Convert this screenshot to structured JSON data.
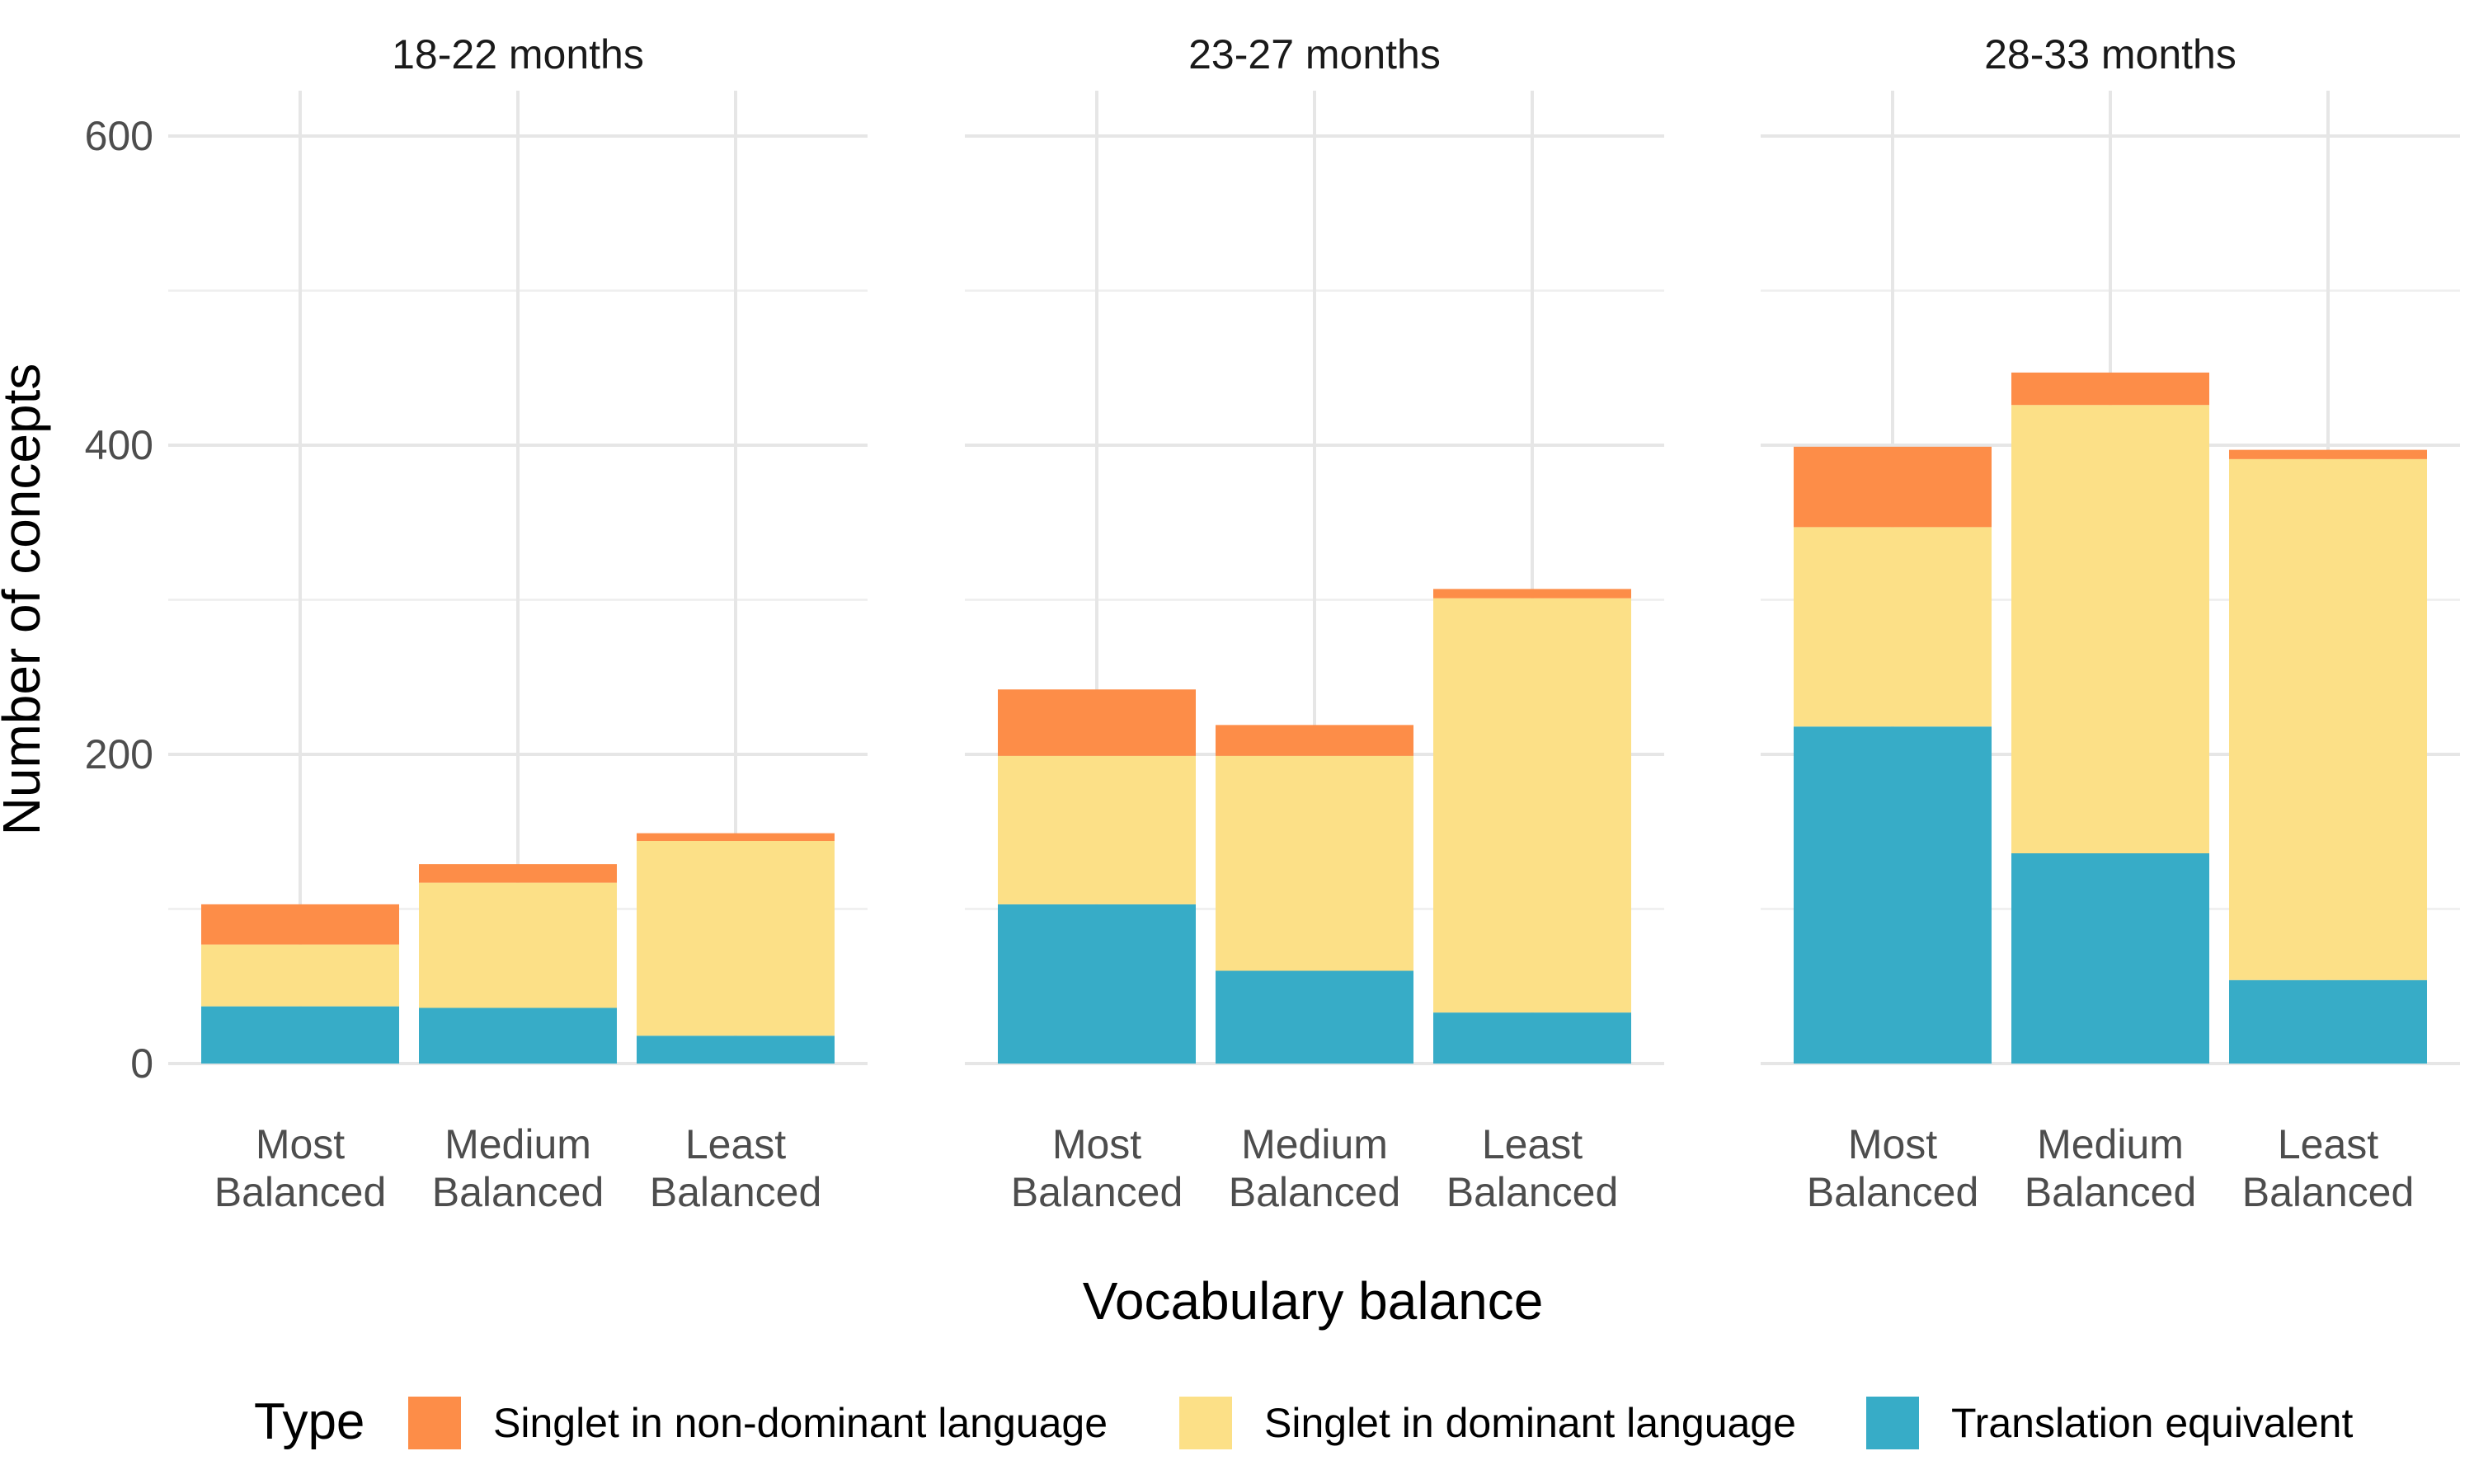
{
  "chart_data": {
    "type": "bar",
    "stacked": true,
    "facet_by": "age group",
    "panels": [
      {
        "title": "18-22 months",
        "categories": [
          "Most Balanced",
          "Medium Balanced",
          "Least Balanced"
        ],
        "series": [
          {
            "name": "Translation equivalent",
            "values": [
              37,
              36,
              18
            ]
          },
          {
            "name": "Singlet in dominant language",
            "values": [
              40,
              81,
              126
            ]
          },
          {
            "name": "Singlet in non-dominant language",
            "values": [
              26,
              12,
              5
            ]
          }
        ]
      },
      {
        "title": "23-27 months",
        "categories": [
          "Most Balanced",
          "Medium Balanced",
          "Least Balanced"
        ],
        "series": [
          {
            "name": "Translation equivalent",
            "values": [
              103,
              60,
              33
            ]
          },
          {
            "name": "Singlet in dominant language",
            "values": [
              96,
              139,
              268
            ]
          },
          {
            "name": "Singlet in non-dominant language",
            "values": [
              43,
              20,
              6
            ]
          }
        ]
      },
      {
        "title": "28-33 months",
        "categories": [
          "Most Balanced",
          "Medium Balanced",
          "Least Balanced"
        ],
        "series": [
          {
            "name": "Translation equivalent",
            "values": [
              218,
              136,
              54
            ]
          },
          {
            "name": "Singlet in dominant language",
            "values": [
              129,
              290,
              337
            ]
          },
          {
            "name": "Singlet in non-dominant language",
            "values": [
              52,
              21,
              6
            ]
          }
        ]
      }
    ],
    "category_lines": [
      [
        "Most",
        "Balanced"
      ],
      [
        "Medium",
        "Balanced"
      ],
      [
        "Least",
        "Balanced"
      ]
    ],
    "xlabel": "Vocabulary balance",
    "ylabel": "Number of concepts",
    "ylim": [
      0,
      630
    ],
    "yticks": [
      0,
      200,
      400,
      600
    ],
    "minor_yticks": [
      100,
      300,
      500
    ],
    "grid": true,
    "legend": {
      "title": "Type",
      "position": "bottom",
      "items": [
        {
          "label": "Singlet in non-dominant language",
          "color": "#fd8d48"
        },
        {
          "label": "Singlet in dominant language",
          "color": "#fce087"
        },
        {
          "label": "Translation equivalent",
          "color": "#37acc7"
        }
      ]
    },
    "colors": {
      "Singlet in non-dominant language": "#fd8d48",
      "Singlet in dominant language": "#fce087",
      "Translation equivalent": "#37acc7"
    }
  }
}
